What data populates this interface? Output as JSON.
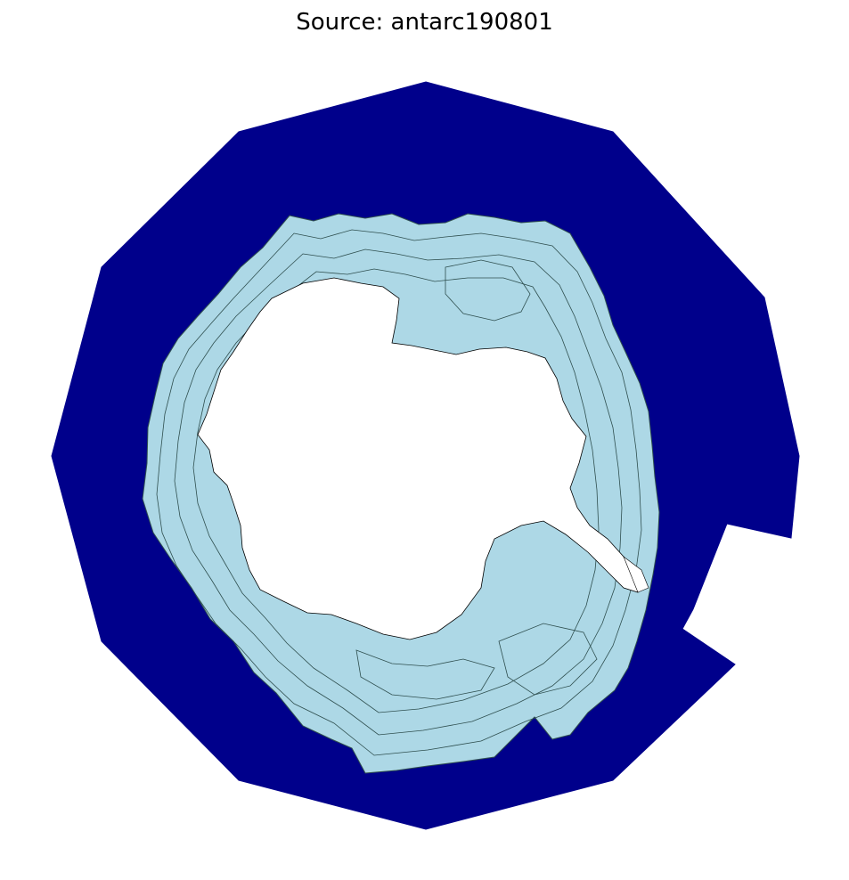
{
  "title": "Source: antarc190801",
  "colors": {
    "ocean": "#00008b",
    "ice": "#add8e6",
    "land": "#ffffff",
    "contour": "#2f4f4f"
  }
}
